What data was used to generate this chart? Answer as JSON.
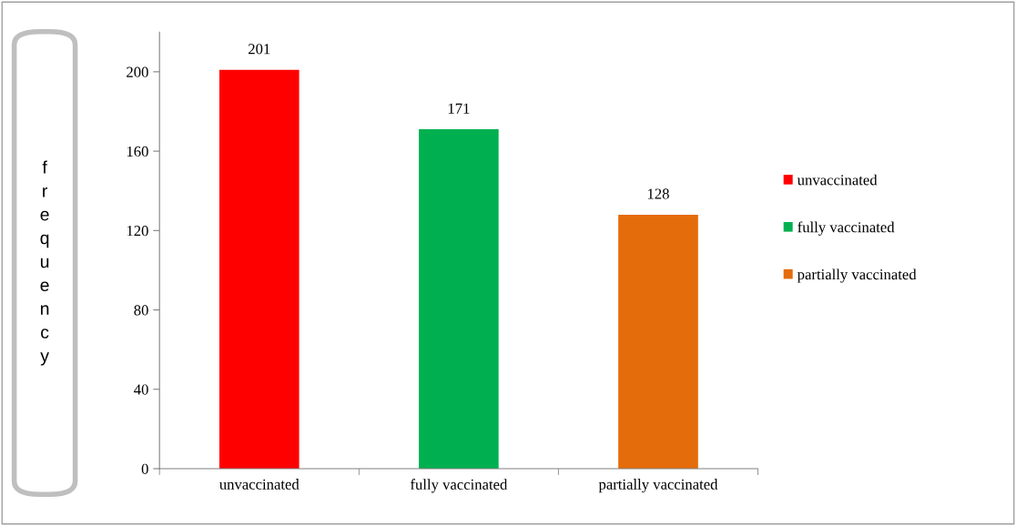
{
  "chart_data": {
    "type": "bar",
    "ylabel": "frequency",
    "categories": [
      "unvaccinated",
      "fully vaccinated",
      "partially vaccinated"
    ],
    "series": [
      {
        "name": "unvaccinated",
        "color": "#ff0000",
        "values": [
          201,
          null,
          null
        ]
      },
      {
        "name": "fully vaccinated",
        "color": "#00b050",
        "values": [
          null,
          171,
          null
        ]
      },
      {
        "name": "partially vaccinated",
        "color": "#e46c0a",
        "values": [
          null,
          null,
          128
        ]
      }
    ],
    "ylim": [
      0,
      220
    ],
    "yticks": [
      0,
      40,
      80,
      120,
      160,
      200
    ],
    "data_labels": true,
    "legend": "right",
    "grid": false
  }
}
